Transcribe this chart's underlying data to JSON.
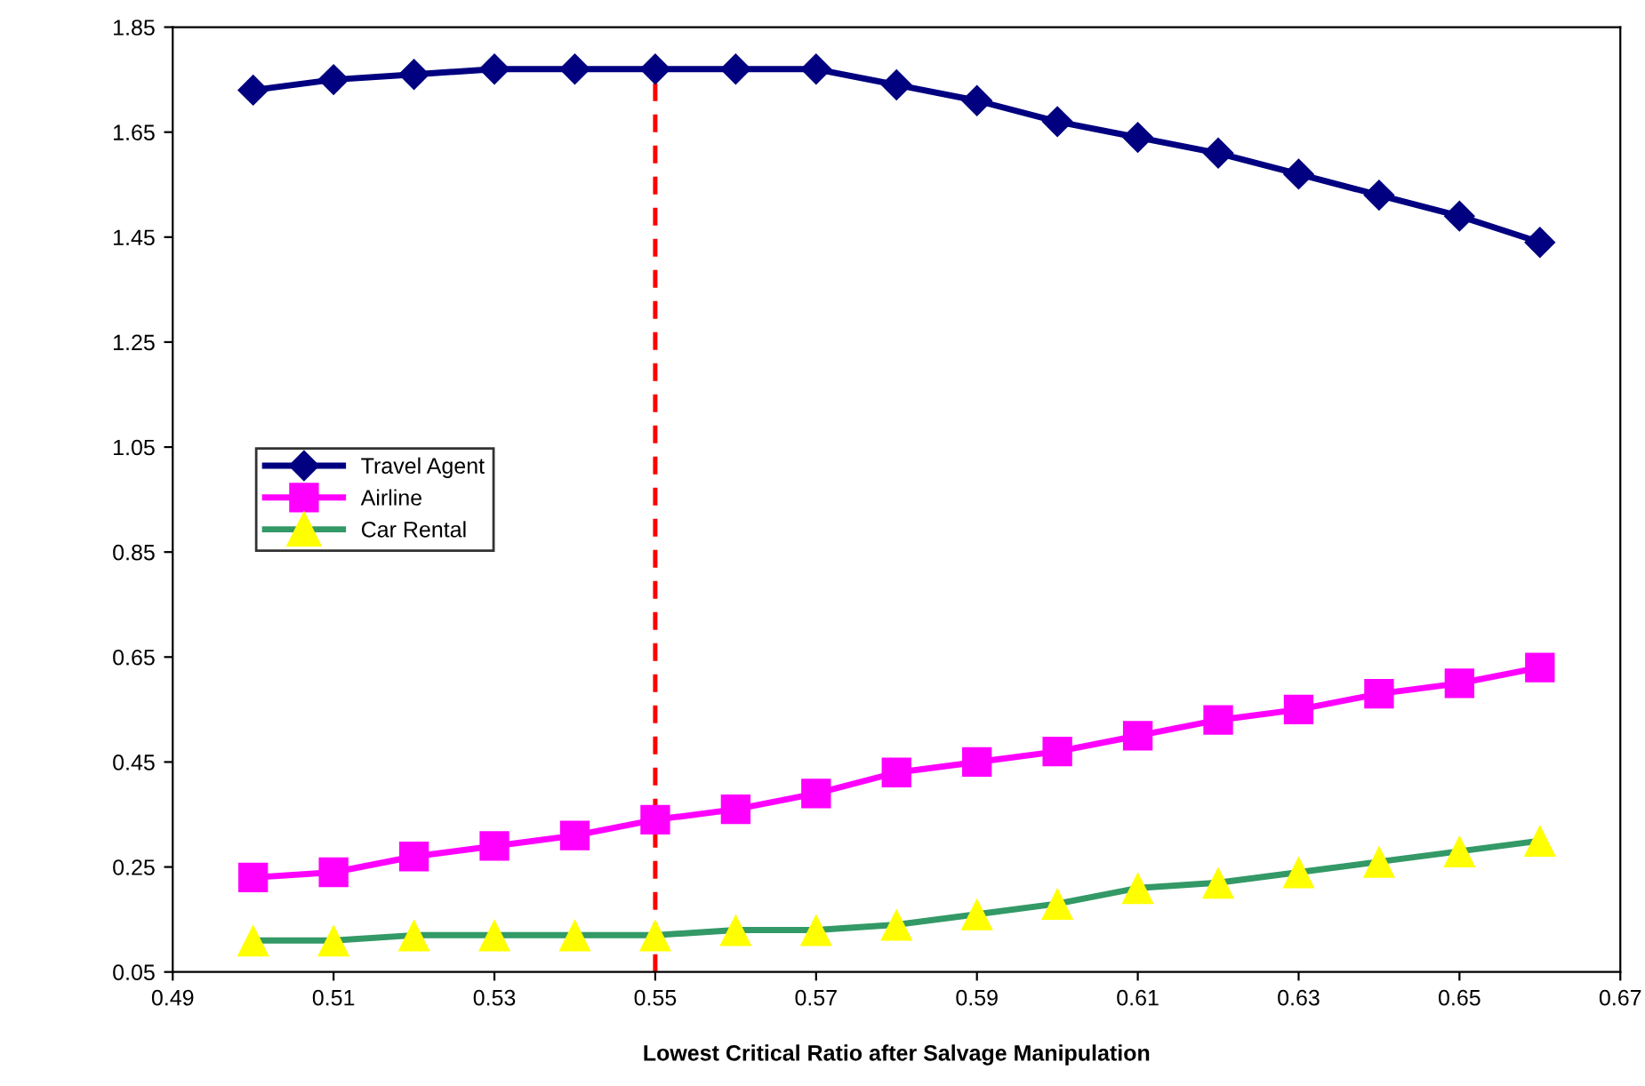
{
  "chart_data": {
    "type": "line",
    "xlabel": "Lowest Critical Ratio after Salvage Manipulation",
    "x": [
      0.5,
      0.51,
      0.52,
      0.53,
      0.54,
      0.55,
      0.56,
      0.57,
      0.58,
      0.59,
      0.6,
      0.61,
      0.62,
      0.63,
      0.64,
      0.65,
      0.66
    ],
    "series": [
      {
        "name": "Travel Agent",
        "color": "#000080",
        "marker": "diamond",
        "values": [
          1.73,
          1.75,
          1.76,
          1.77,
          1.77,
          1.77,
          1.77,
          1.77,
          1.74,
          1.71,
          1.67,
          1.64,
          1.61,
          1.57,
          1.53,
          1.49,
          1.44
        ]
      },
      {
        "name": "Airline",
        "color": "#ff00ff",
        "marker": "square",
        "values": [
          0.23,
          0.24,
          0.27,
          0.29,
          0.31,
          0.34,
          0.36,
          0.39,
          0.43,
          0.45,
          0.47,
          0.5,
          0.53,
          0.55,
          0.58,
          0.6,
          0.63
        ]
      },
      {
        "name": "Car Rental",
        "color": "#339966",
        "colors": [
          "#ffff00",
          "#ffff00",
          "#ffff00",
          "#ffff00",
          "#ffff00",
          "#ffff00",
          "#ffff00",
          "#ffff00",
          "#ffff00",
          "#ffff00",
          "#ffff00",
          "#ffff00",
          "#ffff00",
          "#ffff00",
          "#ffff00",
          "#ffff00",
          "#ffff00"
        ],
        "marker": "triangle",
        "values": [
          0.11,
          0.11,
          0.12,
          0.12,
          0.12,
          0.12,
          0.13,
          0.13,
          0.14,
          0.16,
          0.18,
          0.21,
          0.22,
          0.24,
          0.26,
          0.28,
          0.3
        ]
      },
      {
        "color": "#ff0000",
        "marker": "none",
        "line_style": "dashed",
        "x": [
          0.55,
          0.55
        ],
        "values": [
          0.05,
          1.77
        ]
      }
    ],
    "xlim": [
      0.49,
      0.67
    ],
    "xticks": [
      {
        "value": 0.49,
        "label": "0.49"
      },
      {
        "value": 0.51,
        "label": "0.51"
      },
      {
        "value": 0.53,
        "label": "0.53"
      },
      {
        "value": 0.55,
        "label": "0.55"
      },
      {
        "value": 0.57,
        "label": "0.57"
      },
      {
        "value": 0.59,
        "label": "0.59"
      },
      {
        "value": 0.61,
        "label": "0.61"
      },
      {
        "value": 0.63,
        "label": "0.63"
      },
      {
        "value": 0.65,
        "label": "0.65"
      },
      {
        "value": 0.67,
        "label": "0.67"
      }
    ],
    "ylim": [
      0.05,
      1.85
    ],
    "yticks": [
      0.05,
      0.25,
      0.45,
      0.65,
      0.85,
      1.05,
      1.25,
      1.45,
      1.65,
      1.85
    ],
    "grid": false,
    "legend": "center left"
  }
}
